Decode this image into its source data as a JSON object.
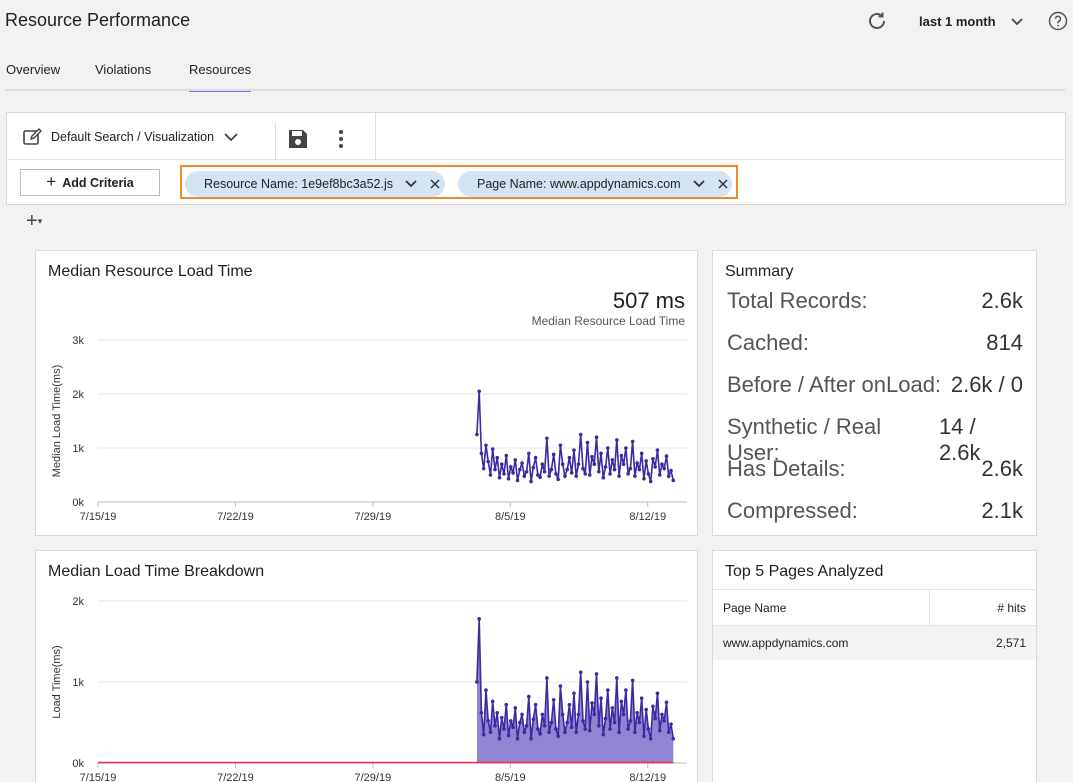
{
  "header": {
    "title": "Resource Performance",
    "time_range": "last 1 month"
  },
  "tabs": [
    {
      "label": "Overview"
    },
    {
      "label": "Violations"
    },
    {
      "label": "Resources"
    }
  ],
  "toolbar": {
    "search_label": "Default Search / Visualization",
    "add_criteria_label": "Add Criteria",
    "filters": [
      {
        "label": "Resource Name: 1e9ef8bc3a52.js"
      },
      {
        "label": "Page Name: www.appdynamics.com"
      }
    ]
  },
  "median_card": {
    "title": "Median Resource Load Time",
    "big_value": "507 ms",
    "big_caption": "Median Resource Load Time"
  },
  "summary": {
    "title": "Summary",
    "rows": [
      {
        "label": "Total Records:",
        "value": "2.6k"
      },
      {
        "label": "Cached:",
        "value": "814"
      },
      {
        "label": "Before / After onLoad:",
        "value": "2.6k / 0"
      },
      {
        "label": "Synthetic / Real User:",
        "value": "14 / 2.6k"
      },
      {
        "label": "Has Details:",
        "value": "2.6k"
      },
      {
        "label": "Compressed:",
        "value": "2.1k"
      }
    ]
  },
  "breakdown_card": {
    "title": "Median Load Time Breakdown"
  },
  "top5": {
    "title": "Top 5 Pages Analyzed",
    "columns": [
      "Page Name",
      "# hits"
    ],
    "rows": [
      {
        "page": "www.appdynamics.com",
        "hits": "2,571"
      }
    ]
  },
  "chart_data": [
    {
      "type": "line",
      "title": "Median Resource Load Time",
      "ylabel": "Median Load Time(ms)",
      "yticks": [
        "0k",
        "1k",
        "2k",
        "3k"
      ],
      "ylim": [
        0,
        3000
      ],
      "xticks": [
        "7/15/19",
        "7/22/19",
        "7/29/19",
        "8/5/19",
        "8/12/19"
      ],
      "x_range_days": [
        0,
        30
      ],
      "color": "#3b2aa0",
      "series": [
        {
          "x_start_day": 19.3,
          "x_end_day": 29.3,
          "values": [
            1250,
            2050,
            900,
            620,
            1050,
            750,
            500,
            980,
            600,
            820,
            450,
            700,
            520,
            860,
            430,
            650,
            540,
            780,
            400,
            600,
            720,
            480,
            560,
            900,
            380,
            640,
            820,
            500,
            460,
            700,
            560,
            1180,
            480,
            600,
            880,
            520,
            420,
            1050,
            700,
            480,
            600,
            820,
            540,
            960,
            480,
            700,
            1250,
            620,
            520,
            1100,
            500,
            840,
            700,
            1200,
            560,
            900,
            450,
            650,
            1000,
            520,
            780,
            600,
            1150,
            480,
            860,
            700,
            1000,
            520,
            620,
            1120,
            480,
            720,
            600,
            900,
            430,
            760,
            520,
            380,
            800,
            650,
            960,
            500,
            700,
            620,
            850,
            480,
            580,
            400
          ]
        }
      ]
    },
    {
      "type": "area",
      "title": "Median Load Time Breakdown",
      "ylabel": "Load Time(ms)",
      "yticks": [
        "0k",
        "1k",
        "2k"
      ],
      "ylim": [
        0,
        2000
      ],
      "xticks": [
        "7/15/19",
        "7/22/19",
        "7/29/19",
        "8/5/19",
        "8/12/19"
      ],
      "x_range_days": [
        0,
        30
      ],
      "series": [
        {
          "color": "#3b2aa0",
          "x_start_day": 19.3,
          "x_end_day": 29.3,
          "values": [
            1000,
            1780,
            620,
            350,
            900,
            520,
            380,
            760,
            460,
            620,
            300,
            560,
            420,
            720,
            340,
            520,
            440,
            680,
            300,
            500,
            600,
            380,
            460,
            820,
            300,
            540,
            720,
            420,
            360,
            600,
            460,
            1050,
            380,
            500,
            780,
            420,
            330,
            950,
            600,
            380,
            500,
            720,
            440,
            860,
            380,
            600,
            1120,
            520,
            420,
            1000,
            400,
            740,
            600,
            1100,
            460,
            800,
            350,
            550,
            900,
            420,
            680,
            500,
            1050,
            380,
            760,
            600,
            900,
            420,
            520,
            1020,
            380,
            620,
            500,
            800,
            330,
            660,
            420,
            300,
            700,
            550,
            860,
            400,
            600,
            520,
            750,
            380,
            480,
            300
          ]
        },
        {
          "color": "#e8305a",
          "x_start_day": 0,
          "x_end_day": 29.3,
          "values": [
            5,
            5
          ]
        }
      ]
    }
  ]
}
